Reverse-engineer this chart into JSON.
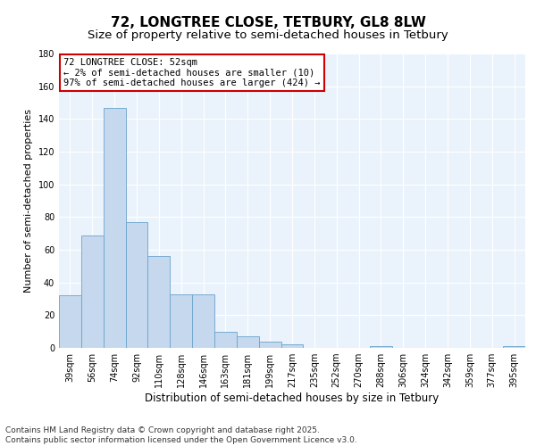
{
  "title": "72, LONGTREE CLOSE, TETBURY, GL8 8LW",
  "subtitle": "Size of property relative to semi-detached houses in Tetbury",
  "xlabel": "Distribution of semi-detached houses by size in Tetbury",
  "ylabel": "Number of semi-detached properties",
  "categories": [
    "39sqm",
    "56sqm",
    "74sqm",
    "92sqm",
    "110sqm",
    "128sqm",
    "146sqm",
    "163sqm",
    "181sqm",
    "199sqm",
    "217sqm",
    "235sqm",
    "252sqm",
    "270sqm",
    "288sqm",
    "306sqm",
    "324sqm",
    "342sqm",
    "359sqm",
    "377sqm",
    "395sqm"
  ],
  "values": [
    32,
    69,
    147,
    77,
    56,
    33,
    33,
    10,
    7,
    4,
    2,
    0,
    0,
    0,
    1,
    0,
    0,
    0,
    0,
    0,
    1
  ],
  "bar_color": "#c5d8ed",
  "bar_edge_color": "#6aa3cc",
  "background_color": "#eaf3fb",
  "annotation_text": "72 LONGTREE CLOSE: 52sqm\n← 2% of semi-detached houses are smaller (10)\n97% of semi-detached houses are larger (424) →",
  "annotation_box_color": "#ffffff",
  "annotation_box_edge": "#cc0000",
  "ylim": [
    0,
    180
  ],
  "yticks": [
    0,
    20,
    40,
    60,
    80,
    100,
    120,
    140,
    160,
    180
  ],
  "footnote": "Contains HM Land Registry data © Crown copyright and database right 2025.\nContains public sector information licensed under the Open Government Licence v3.0.",
  "title_fontsize": 11,
  "subtitle_fontsize": 9.5,
  "xlabel_fontsize": 8.5,
  "ylabel_fontsize": 8,
  "tick_fontsize": 7,
  "annotation_fontsize": 7.5,
  "footnote_fontsize": 6.5
}
